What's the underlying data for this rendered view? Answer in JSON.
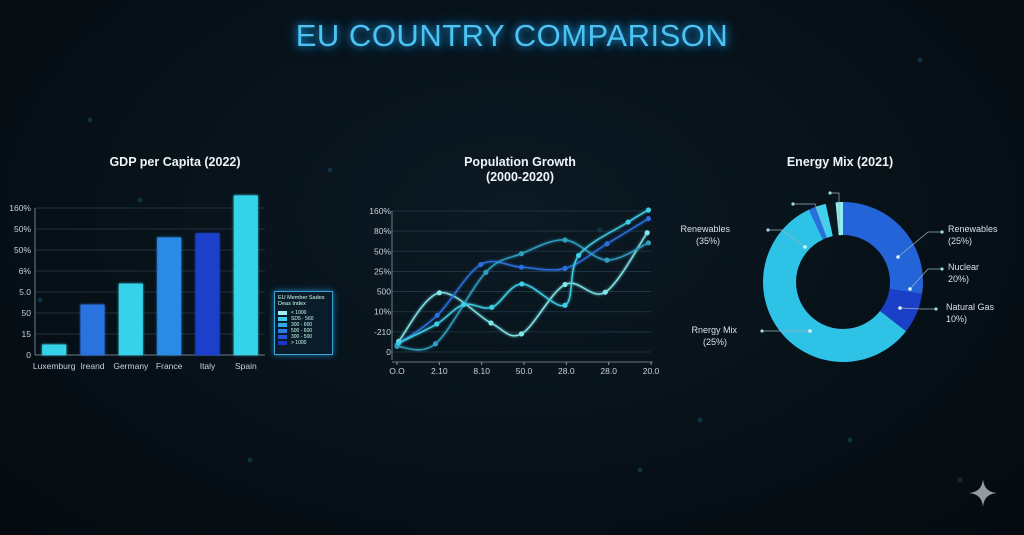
{
  "title": "EU COUNTRY COMPARISON",
  "colors": {
    "accent": "#4cc3f2",
    "cyan": "#36d3ea",
    "blue": "#2a6fe0",
    "darkblue": "#1d3fcc"
  },
  "chart_data": [
    {
      "type": "bar",
      "title": "GDP per Capita (2022)",
      "categories": [
        "Luxemburg",
        "Ireand",
        "Germany",
        "France",
        "Italy",
        "Spain"
      ],
      "yticks": [
        "0",
        "15",
        "50",
        "5.0",
        "6%",
        "50%",
        "50%",
        "160%"
      ],
      "values": [
        0.5,
        2.4,
        3.4,
        5.6,
        5.8,
        7.6
      ],
      "colors": [
        "#36d3ea",
        "#2a72e0",
        "#36d3ea",
        "#2a8ae6",
        "#1d3fcc",
        "#36d3ea"
      ],
      "legend": {
        "title": "EU Member Sades Deas Index",
        "items": [
          {
            "label": "< 1000",
            "color": "#9ff0f4"
          },
          {
            "label": "SD5 · 560",
            "color": "#3ecfee"
          },
          {
            "label": "300 - 600",
            "color": "#2ea8ea"
          },
          {
            "label": "500 - 600",
            "color": "#2a7ee2"
          },
          {
            "label": "300 - 500",
            "color": "#2452d8"
          },
          {
            "label": "> 1000",
            "color": "#1c34c8"
          }
        ],
        "placement": "right"
      },
      "grid": true
    },
    {
      "type": "line",
      "title": "Population Growth",
      "subtitle": "(2000-2020)",
      "xticks": [
        "O.O",
        "2.10",
        "8.10",
        "50.0",
        "28.0",
        "28.0",
        "20.0"
      ],
      "yticks": [
        "0",
        "-210",
        "10%",
        "500",
        "25%",
        "50%",
        "80%",
        "160%"
      ],
      "series": [
        {
          "color": "#7fe6ea",
          "points": [
            [
              0.04,
              0.53
            ],
            [
              1,
              2.94
            ],
            [
              2.22,
              1.44
            ],
            [
              2.94,
              0.9
            ],
            [
              3.97,
              3.35
            ],
            [
              4.92,
              2.97
            ],
            [
              5.91,
              5.92
            ]
          ]
        },
        {
          "color": "#2a6fe0",
          "points": [
            [
              0,
              0.36
            ],
            [
              0.95,
              1.82
            ],
            [
              1.98,
              4.34
            ],
            [
              2.94,
              4.21
            ],
            [
              3.97,
              4.15
            ],
            [
              4.96,
              5.37
            ],
            [
              5.94,
              6.62
            ]
          ]
        },
        {
          "color": "#2f9fc0",
          "points": [
            [
              0,
              0.28
            ],
            [
              0.91,
              0.41
            ],
            [
              2.1,
              3.96
            ],
            [
              2.94,
              4.88
            ],
            [
              3.97,
              5.56
            ],
            [
              4.96,
              4.56
            ],
            [
              5.94,
              5.42
            ]
          ]
        },
        {
          "color": "#3cd0e8",
          "points": [
            [
              0.04,
              0.45
            ],
            [
              0.94,
              1.39
            ],
            [
              1.57,
              2.35
            ],
            [
              2.24,
              2.22
            ],
            [
              2.95,
              3.38
            ],
            [
              3.97,
              2.32
            ],
            [
              4.29,
              4.79
            ],
            [
              5.46,
              6.45
            ],
            [
              5.94,
              7.05
            ]
          ]
        }
      ],
      "grid": true
    },
    {
      "type": "pie",
      "title": "Energy Mix (2021)",
      "donut": true,
      "slices": [
        {
          "value": 27.8,
          "color": "#2364d8"
        },
        {
          "value": 8.3,
          "color": "#1c3fc8"
        },
        {
          "value": 58.3,
          "color": "#2ec2e6"
        },
        {
          "value": 1.4,
          "color": "#2a6fe0"
        },
        {
          "value": 2.2,
          "color": "#3fd2ee"
        },
        {
          "value": 2.0,
          "color": "#0a1620"
        },
        {
          "value": 1.5,
          "color": "#8ff0f4"
        }
      ],
      "labels": [
        {
          "name": "Renewables",
          "pct": "(25%)"
        },
        {
          "name": "Nuclear",
          "pct": "20%)"
        },
        {
          "name": "Natural Gas",
          "pct": "10%)"
        },
        {
          "name": "Rnergy Mix",
          "pct": "(25%)"
        },
        {
          "name": "Renewables",
          "pct": "(35%)"
        }
      ]
    }
  ]
}
